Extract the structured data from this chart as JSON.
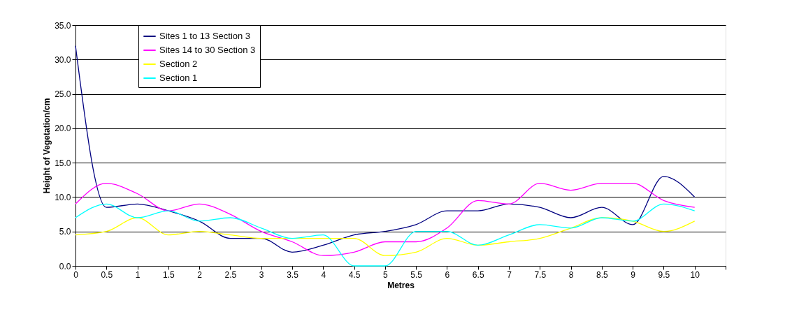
{
  "chart_data": {
    "type": "line",
    "xlabel": "Metres",
    "ylabel": "Height of Vegetation/cm",
    "x": [
      0,
      0.5,
      1,
      1.5,
      2,
      2.5,
      3,
      3.5,
      4,
      4.5,
      5,
      5.5,
      6,
      6.5,
      7,
      7.5,
      8,
      8.5,
      9,
      9.5,
      10
    ],
    "series": [
      {
        "name": "Sites 1 to 13 Section 3",
        "color": "#000080",
        "values": [
          32,
          8.5,
          9,
          8,
          6.5,
          4,
          4,
          2,
          3,
          4.5,
          5,
          6,
          8,
          8,
          9,
          8.5,
          7,
          8.5,
          6,
          13,
          10
        ]
      },
      {
        "name": "Sites 14 to 30 Section 3",
        "color": "#ff00ff",
        "values": [
          9,
          12,
          10.5,
          8,
          9,
          7.5,
          5,
          3.5,
          1.5,
          2,
          3.5,
          3.5,
          5.5,
          9.5,
          9,
          12,
          11,
          12,
          12,
          9.5,
          8.5
        ]
      },
      {
        "name": "Section 2",
        "color": "#ffff00",
        "values": [
          4.5,
          5,
          7,
          4.5,
          5,
          4.5,
          4,
          4,
          4,
          4,
          1.5,
          2,
          4,
          3,
          3.5,
          4,
          5.5,
          7,
          6.5,
          5,
          6.5
        ]
      },
      {
        "name": "Section 1",
        "color": "#00ffff",
        "values": [
          7,
          9,
          7,
          8,
          6.5,
          7,
          5.5,
          4,
          4.5,
          0,
          0,
          5,
          5,
          3,
          4.5,
          6,
          5.5,
          7,
          6.5,
          9,
          8
        ]
      }
    ],
    "xlim": [
      0,
      10.5
    ],
    "xticks": [
      0,
      0.5,
      1,
      1.5,
      2,
      2.5,
      3,
      3.5,
      4,
      4.5,
      5,
      5.5,
      6,
      6.5,
      7,
      7.5,
      8,
      8.5,
      9,
      9.5,
      10,
      {
        "value": 10.5,
        "label": null
      }
    ],
    "ylim": [
      0,
      35
    ],
    "yticks": [
      {
        "value": 0,
        "label": "0.0"
      },
      {
        "value": 5,
        "label": "5.0"
      },
      {
        "value": 10,
        "label": "10.0"
      },
      {
        "value": 15,
        "label": "15.0"
      },
      {
        "value": 20,
        "label": "20.0"
      },
      {
        "value": 25,
        "label": "25.0"
      },
      {
        "value": 30,
        "label": "30.0"
      },
      {
        "value": 35,
        "label": "35.0"
      }
    ],
    "grid": "y",
    "legend": "top left",
    "marker": "none",
    "line_style": "solid"
  }
}
